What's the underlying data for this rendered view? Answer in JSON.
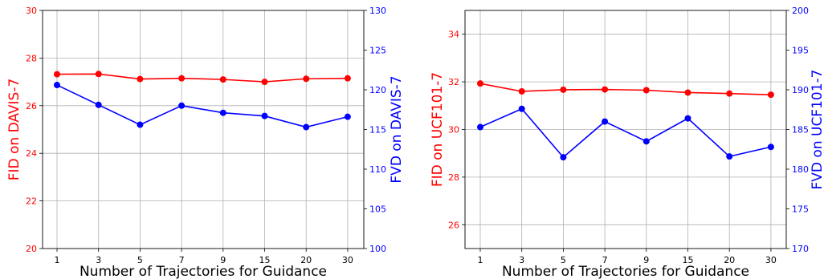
{
  "chart_data": [
    {
      "type": "line",
      "categories": [
        "1",
        "3",
        "5",
        "7",
        "9",
        "15",
        "20",
        "30"
      ],
      "xlabel": "Number of Trajectories for Guidance",
      "ylabel_left": "FID on DAVIS-7",
      "ylabel_right": "FVD on DAVIS-7",
      "ylim_left": [
        20,
        30
      ],
      "ylim_right": [
        100,
        130
      ],
      "yticks_left": [
        "20",
        "22",
        "24",
        "26",
        "28",
        "30"
      ],
      "yticks_right": [
        "100",
        "105",
        "110",
        "115",
        "120",
        "125",
        "130"
      ],
      "grid": true,
      "series": [
        {
          "axis": "left",
          "color": "#ff0000",
          "values": [
            27.32,
            27.33,
            27.12,
            27.15,
            27.1,
            27.0,
            27.13,
            27.15
          ]
        },
        {
          "axis": "right",
          "color": "#0000ff",
          "values": [
            120.6,
            118.1,
            115.6,
            118.0,
            117.1,
            116.7,
            115.3,
            116.6
          ]
        }
      ]
    },
    {
      "type": "line",
      "categories": [
        "1",
        "3",
        "5",
        "7",
        "9",
        "15",
        "20",
        "30"
      ],
      "xlabel": "Number of Trajectories for Guidance",
      "ylabel_left": "FID on UCF101-7",
      "ylabel_right": "FVD on UCF101-7",
      "ylim_left": [
        25,
        35
      ],
      "ylim_right": [
        170,
        200
      ],
      "yticks_left": [
        "26",
        "28",
        "30",
        "32",
        "34"
      ],
      "yticks_right": [
        "170",
        "175",
        "180",
        "185",
        "190",
        "195",
        "200"
      ],
      "grid": true,
      "series": [
        {
          "axis": "left",
          "color": "#ff0000",
          "values": [
            31.93,
            31.6,
            31.67,
            31.68,
            31.65,
            31.55,
            31.51,
            31.46
          ]
        },
        {
          "axis": "right",
          "color": "#0000ff",
          "values": [
            185.3,
            187.6,
            181.5,
            186.0,
            183.5,
            186.4,
            181.6,
            182.8
          ]
        }
      ]
    }
  ]
}
